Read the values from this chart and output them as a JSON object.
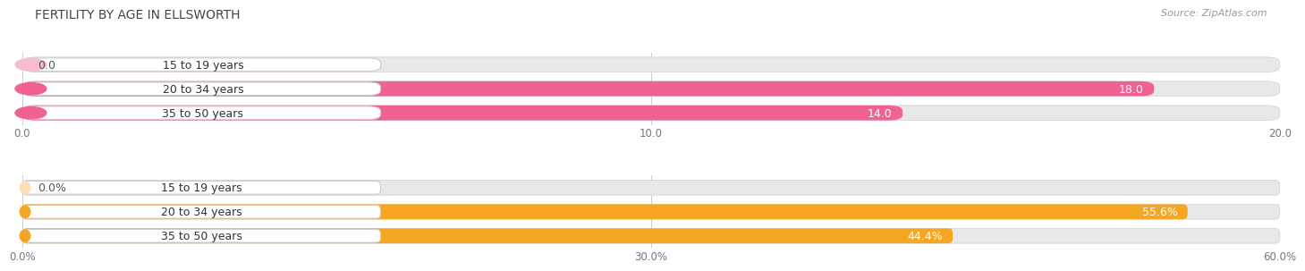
{
  "title": "FERTILITY BY AGE IN ELLSWORTH",
  "source": "Source: ZipAtlas.com",
  "top_chart": {
    "categories": [
      "15 to 19 years",
      "20 to 34 years",
      "35 to 50 years"
    ],
    "values": [
      0.0,
      18.0,
      14.0
    ],
    "xlim": [
      0,
      20
    ],
    "xticks": [
      0.0,
      10.0,
      20.0
    ],
    "xtick_labels": [
      "0.0",
      "10.0",
      "20.0"
    ],
    "bar_color": "#F06292",
    "bar_bg_color": "#E8E8E8",
    "label_end_color": "#555555",
    "pill_bg": "#F5F5F5",
    "pill_border": "#DDDDDD",
    "dot_color": "#E91E8C"
  },
  "bottom_chart": {
    "categories": [
      "15 to 19 years",
      "20 to 34 years",
      "35 to 50 years"
    ],
    "values": [
      0.0,
      55.6,
      44.4
    ],
    "xlim": [
      0,
      60
    ],
    "xticks": [
      0.0,
      30.0,
      60.0
    ],
    "xtick_labels": [
      "0.0%",
      "30.0%",
      "60.0%"
    ],
    "bar_color": "#F5A623",
    "bar_bg_color": "#E8E8E8",
    "label_end_color": "#555555",
    "pill_bg": "#F5F5F5",
    "pill_border": "#DDDDDD",
    "dot_color": "#F5A623"
  },
  "bg_color": "#ffffff",
  "title_fontsize": 10,
  "label_fontsize": 9,
  "tick_fontsize": 8.5,
  "source_fontsize": 8,
  "cat_label_fontsize": 9
}
